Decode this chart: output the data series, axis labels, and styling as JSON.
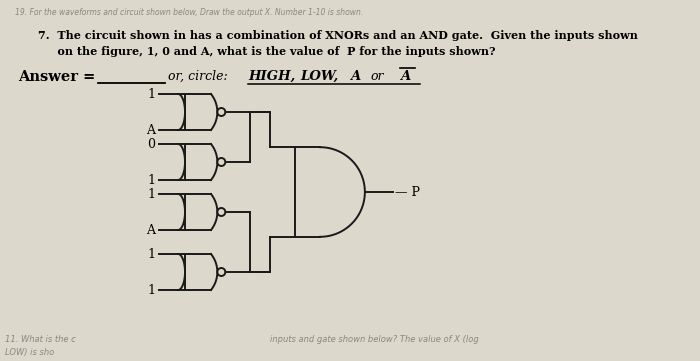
{
  "bg_color": "#ddd8cc",
  "line_color": "#1a1a1a",
  "header_text": "19. For the waveforms and circuit shown below, Draw the output X. Number 1-10 is shown.",
  "q_line1": "7.  The circuit shown in has a combination of XNORs and an AND gate.  Given the inputs shown",
  "q_line2": "     on the figure, 1, 0 and A, what is the value of  P for the inputs shown?",
  "answer_label": "Answer =",
  "or_circle": "or, circle:",
  "high": "HIGH,",
  "low": "LOW,",
  "a_val": "A",
  "or_word": "or",
  "a_bar": "A",
  "gate_inputs_top": [
    "1",
    "0",
    "1",
    "1"
  ],
  "gate_inputs_bot": [
    "A",
    "1",
    "A",
    "1"
  ],
  "output_label": "P",
  "bottom_text_left": "11. What is the c",
  "bottom_text_right": "inputs and gate shown below? The value of X (log",
  "bottom_text_left2": "LOW) is sho"
}
